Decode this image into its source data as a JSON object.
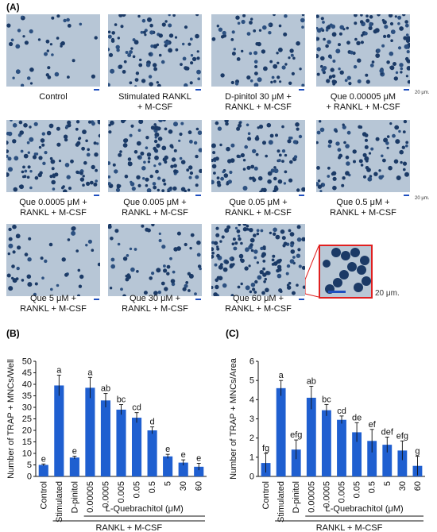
{
  "panel_a": {
    "label": "(A)",
    "images": [
      {
        "caption_lines": [
          "Control"
        ]
      },
      {
        "caption_lines": [
          "Stimulated RANKL",
          "+ M-CSF"
        ]
      },
      {
        "caption_lines": [
          "D-pinitol 30 μM +",
          "RANKL + M-CSF"
        ]
      },
      {
        "caption_lines": [
          "Que 0.00005 μM",
          "+ RANKL + M-CSF"
        ]
      },
      {
        "caption_lines": [
          "Que 0.0005 μM +",
          "RANKL + M-CSF"
        ]
      },
      {
        "caption_lines": [
          "Que 0.005 μM +",
          "RANKL + M-CSF"
        ]
      },
      {
        "caption_lines": [
          "Que 0.05 μM +",
          "RANKL + M-CSF"
        ]
      },
      {
        "caption_lines": [
          "Que 0.5 μM +",
          "RANKL + M-CSF"
        ]
      },
      {
        "caption_lines": [
          "Que 5 μM +",
          "RANKL + M-CSF"
        ]
      },
      {
        "caption_lines": [
          "Que 30 μM +",
          "RANKL + M-CSF"
        ]
      },
      {
        "caption_lines": [
          "Que 60 μM +",
          "RANKL + M-CSF"
        ]
      }
    ],
    "scale_text": "20 μm.",
    "inset_scale_text": "20 μm."
  },
  "colors": {
    "bar": "#1f5fd0",
    "inset_border": "#e02020",
    "scale_bar": "#1f4fbf"
  },
  "chart_data": [
    {
      "panel_label": "(B)",
      "type": "bar",
      "categories": [
        "Control",
        "Stimulated",
        "D-pinitol",
        "0.00005",
        "0.0005",
        "0.005",
        "0.05",
        "0.5",
        "5",
        "30",
        "60"
      ],
      "values": [
        5,
        39.5,
        8.2,
        38.5,
        33,
        29,
        25.5,
        20,
        8.7,
        6,
        4.2
      ],
      "errors": [
        0.4,
        4.5,
        0.6,
        4.5,
        3,
        2.2,
        2.2,
        1.5,
        0.9,
        1.2,
        1.5
      ],
      "letters": [
        "e",
        "a",
        "e",
        "a",
        "ab",
        "bc",
        "cd",
        "d",
        "e",
        "e",
        "e"
      ],
      "ylabel": "Number of TRAP + MNCs/Well",
      "ylim": [
        0,
        50
      ],
      "yticks": [
        0,
        5,
        10,
        15,
        20,
        25,
        30,
        35,
        40,
        45,
        50
      ],
      "group_label": "L-Quebrachitol (μM)",
      "bottom_label": "RANKL + M-CSF"
    },
    {
      "panel_label": "(C)",
      "type": "bar",
      "categories": [
        "Control",
        "Stimulated",
        "D-pinitol",
        "0.00005",
        "0.0005",
        "0.005",
        "0.05",
        "0.5",
        "5",
        "30",
        "60"
      ],
      "values": [
        0.7,
        4.6,
        1.4,
        4.1,
        3.45,
        2.95,
        2.3,
        1.85,
        1.65,
        1.35,
        0.55
      ],
      "errors": [
        0.5,
        0.4,
        0.5,
        0.6,
        0.3,
        0.2,
        0.5,
        0.6,
        0.4,
        0.5,
        0.5
      ],
      "letters": [
        "fg",
        "a",
        "efg",
        "ab",
        "bc",
        "cd",
        "de",
        "ef",
        "def",
        "efg",
        "g"
      ],
      "ylabel": "Number of TRAP + MNCs/Area",
      "ylim": [
        0,
        6
      ],
      "yticks": [
        0,
        1,
        2,
        3,
        4,
        5,
        6
      ],
      "group_label": "L-Quebrachitol (μM)",
      "bottom_label": "RANKL + M-CSF"
    }
  ]
}
